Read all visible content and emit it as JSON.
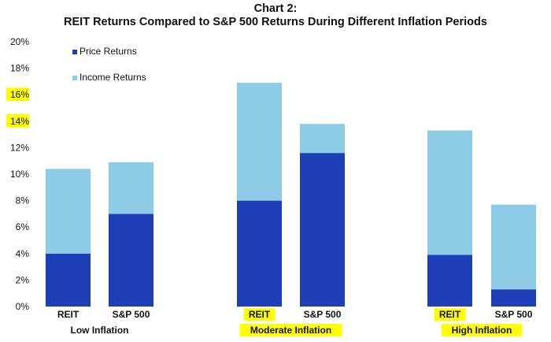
{
  "chart_data": {
    "type": "bar",
    "stacked": true,
    "title": "Chart 2:",
    "subtitle": "REIT Returns Compared to S&P 500 Returns During Different Inflation Periods",
    "groups": [
      "Low Inflation",
      "Moderate Inflation",
      "High Inflation"
    ],
    "categories": [
      "REIT",
      "S&P 500",
      "REIT",
      "S&P 500",
      "REIT",
      "S&P 500"
    ],
    "series": [
      {
        "name": "Price Returns",
        "color": "#1f3fb8",
        "values": [
          4.0,
          7.0,
          8.0,
          11.6,
          3.9,
          1.3
        ]
      },
      {
        "name": "Income Returns",
        "color": "#8ecbe6",
        "values": [
          6.4,
          3.9,
          8.9,
          2.2,
          9.4,
          6.4
        ]
      }
    ],
    "yticks": [
      "0%",
      "2%",
      "4%",
      "6%",
      "8%",
      "10%",
      "12%",
      "14%",
      "16%",
      "18%",
      "20%"
    ],
    "ylim": [
      0,
      20
    ],
    "legend_position": "top-left",
    "grid": false,
    "highlight_color": "#ffff00",
    "highlighted_yticks": [
      "14%",
      "16%"
    ],
    "highlighted_categories": [
      2,
      4
    ],
    "highlighted_groups": [
      1,
      2
    ]
  }
}
